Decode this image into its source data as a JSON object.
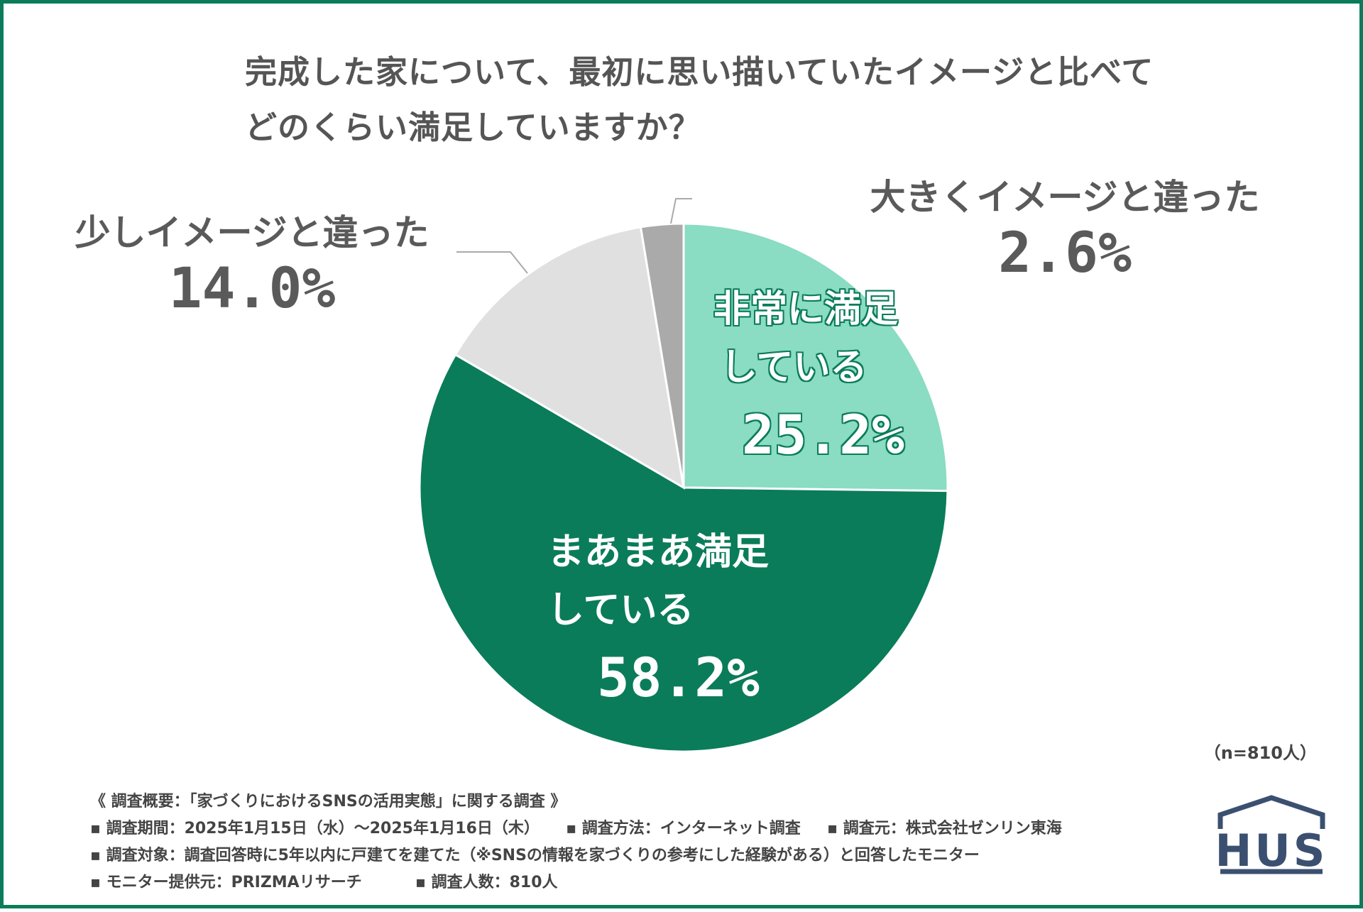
{
  "title": {
    "line1": "完成した家について、最初に思い描いていたイメージと比べて",
    "line2": "どのくらい満足していますか？"
  },
  "chart_data": {
    "type": "pie",
    "title": "完成した家について、最初に思い描いていたイメージと比べてどのくらい満足していますか？",
    "slices": [
      {
        "label_line1": "非常に満足",
        "label_line2": "している",
        "value": 25.2,
        "value_label": "25.2%",
        "color": "#8adcc3"
      },
      {
        "label_line1": "まあまあ満足",
        "label_line2": "している",
        "value": 58.2,
        "value_label": "58.2%",
        "color": "#0a7c5a"
      },
      {
        "label": "少しイメージと違った",
        "value": 14.0,
        "value_label": "14.0%",
        "color": "#e0e0e0"
      },
      {
        "label": "大きくイメージと違った",
        "value": 2.6,
        "value_label": "2.6%",
        "color": "#aaaaaa"
      }
    ],
    "start": "12 o'clock",
    "direction": "clockwise",
    "sample_size": "（n=810人）"
  },
  "notes": {
    "heading": "《 調査概要：「家づくりにおけるSNSの活用実態」に関する調査 》",
    "period": "▪ 調査期間：2025年1月15日（水）〜2025年1月16日（木）",
    "method": "▪ 調査方法：インターネット調査",
    "source": "▪ 調査元：株式会社ゼンリン東海",
    "target": "▪ 調査対象：調査回答時に5年以内に戸建てを建てた（※SNSの情報を家づくりの参考にした経験がある）と回答したモニター",
    "provider": "▪ モニター提供元：PRIZMAリサーチ",
    "respondents": "▪ 調査人数：810人"
  },
  "logo": {
    "text": "HUS",
    "color": "#3b5070"
  }
}
